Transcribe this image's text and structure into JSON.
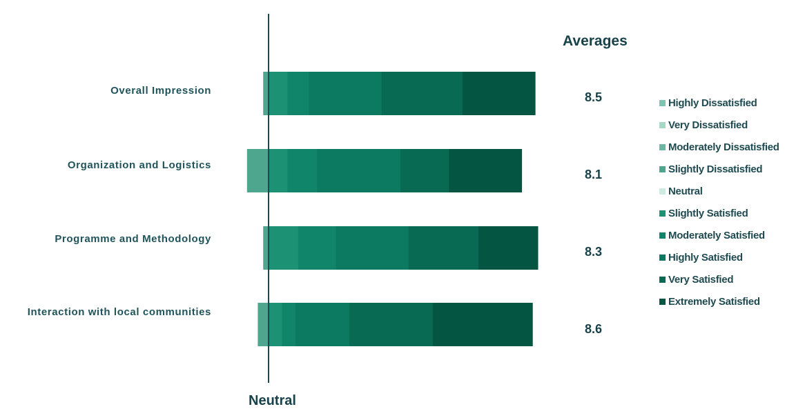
{
  "chart_data": {
    "type": "bar",
    "orientation": "horizontal",
    "stacked": "diverging",
    "center_label": "Neutral",
    "averages_title": "Averages",
    "categories": [
      "Overall Impression",
      "Organization and Logistics",
      "Programme and Methodology",
      "Interaction with local communities"
    ],
    "averages": [
      "8.5",
      "8.1",
      "8.3",
      "8.6"
    ],
    "series": [
      {
        "name": "Highly Dissatisfied",
        "color": "#7ec4b3",
        "values": [
          0,
          0,
          0,
          0
        ]
      },
      {
        "name": "Very Dissatisfied",
        "color": "#a6d8c8",
        "values": [
          0,
          0,
          0,
          0
        ]
      },
      {
        "name": "Moderately Dissatisfied",
        "color": "#6cb8a4",
        "values": [
          0,
          0,
          0,
          0
        ]
      },
      {
        "name": "Slightly Dissatisfied",
        "color": "#4fa68e",
        "values": [
          2,
          8,
          2,
          4
        ]
      },
      {
        "name": "Neutral",
        "color": "#cdebe1",
        "values": [
          0,
          0,
          0,
          0
        ]
      },
      {
        "name": "Slightly Satisfied",
        "color": "#1d9174",
        "values": [
          7,
          7,
          11,
          5
        ]
      },
      {
        "name": "Moderately Satisfied",
        "color": "#10856a",
        "values": [
          8,
          11,
          14,
          5
        ]
      },
      {
        "name": "Highly Satisfied",
        "color": "#0b7a60",
        "values": [
          27,
          31,
          27,
          20
        ]
      },
      {
        "name": "Very Satisfied",
        "color": "#086a53",
        "values": [
          30,
          18,
          26,
          31
        ]
      },
      {
        "name": "Extremely Satisfied",
        "color": "#055543",
        "values": [
          27,
          27,
          22,
          37
        ]
      }
    ],
    "legend": "right"
  }
}
